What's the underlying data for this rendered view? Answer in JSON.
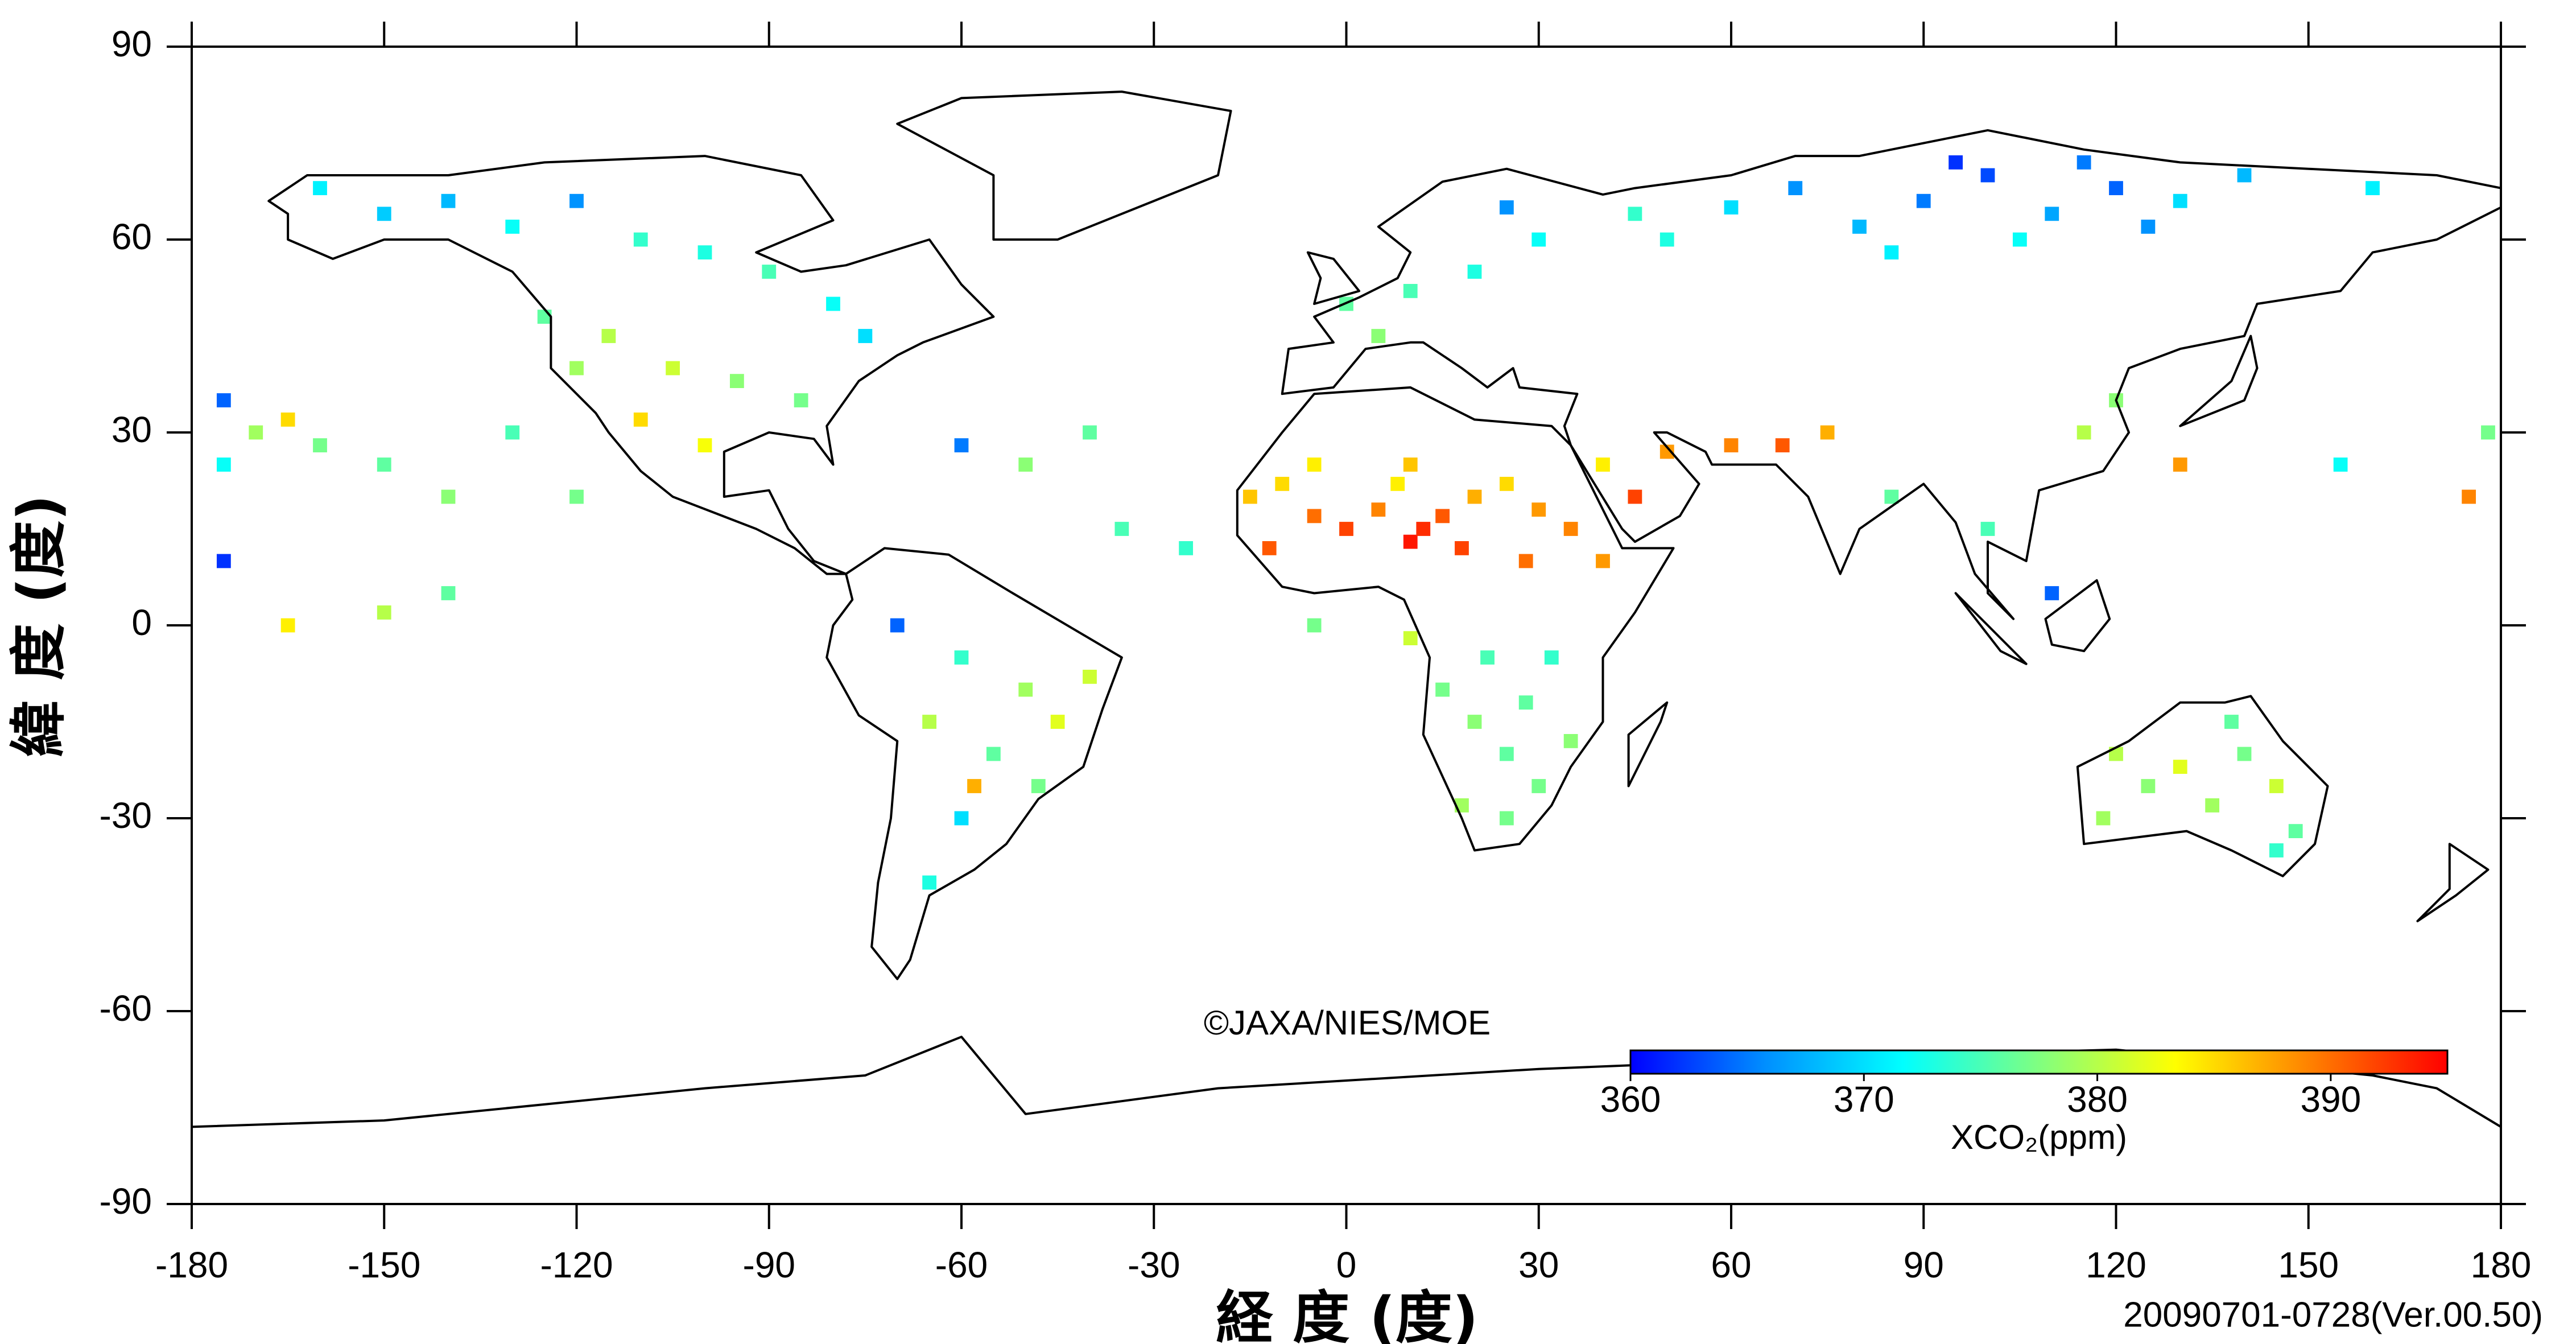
{
  "chart_data": {
    "type": "map",
    "xlabel": "経 度 (度)",
    "ylabel": "緯 度 (度)",
    "xlim": [
      -180,
      180
    ],
    "ylim": [
      -90,
      90
    ],
    "xticks": [
      -180,
      -150,
      -120,
      -90,
      -60,
      -30,
      0,
      30,
      60,
      90,
      120,
      150,
      180
    ],
    "yticks": [
      -90,
      -60,
      -30,
      0,
      30,
      60,
      90
    ],
    "x": [
      -15,
      -10,
      -5,
      0,
      5,
      10,
      12,
      15,
      18,
      20,
      25,
      -5,
      10,
      30,
      35,
      28,
      40,
      45,
      50,
      60,
      68,
      75,
      -12,
      8,
      40,
      15,
      20,
      25,
      30,
      18,
      28,
      35,
      22,
      25,
      32,
      120,
      125,
      130,
      135,
      140,
      145,
      148,
      118,
      138,
      145,
      60,
      70,
      80,
      90,
      100,
      110,
      120,
      130,
      140,
      105,
      85,
      95,
      115,
      125,
      50,
      160,
      45,
      0,
      10,
      20,
      30,
      25,
      5,
      -160,
      -150,
      -140,
      -130,
      -120,
      -110,
      -100,
      -90,
      -80,
      -115,
      -105,
      -95,
      -85,
      -110,
      -100,
      -120,
      -75,
      -125,
      -60,
      -50,
      -45,
      -55,
      -60,
      -65,
      -70,
      -48,
      -40,
      -65,
      -58,
      -175,
      -170,
      -165,
      -160,
      -150,
      -140,
      -130,
      -120,
      -175,
      -165,
      -150,
      -140,
      -175,
      -40,
      -35,
      -50,
      -60,
      -25,
      10,
      -5,
      115,
      120,
      130,
      110,
      100,
      85,
      155,
      175,
      178
    ],
    "y": [
      20,
      22,
      17,
      15,
      18,
      13,
      15,
      17,
      12,
      20,
      22,
      25,
      25,
      18,
      15,
      10,
      25,
      20,
      27,
      28,
      28,
      30,
      12,
      22,
      10,
      -10,
      -15,
      -20,
      -25,
      -28,
      -12,
      -18,
      -5,
      -30,
      -5,
      -20,
      -25,
      -22,
      -28,
      -20,
      -25,
      -32,
      -30,
      -15,
      -35,
      65,
      68,
      62,
      66,
      70,
      64,
      68,
      66,
      70,
      60,
      58,
      72,
      72,
      62,
      60,
      68,
      64,
      50,
      52,
      55,
      60,
      65,
      45,
      68,
      64,
      66,
      62,
      66,
      60,
      58,
      55,
      50,
      45,
      40,
      38,
      35,
      32,
      28,
      40,
      45,
      48,
      -5,
      -10,
      -15,
      -20,
      -30,
      -15,
      0,
      -25,
      -8,
      -40,
      -25,
      35,
      30,
      32,
      28,
      25,
      20,
      30,
      20,
      10,
      0,
      2,
      5,
      25,
      30,
      15,
      25,
      28,
      12,
      -2,
      0,
      30,
      35,
      25,
      5,
      15,
      20,
      25,
      20,
      30
    ],
    "values": [
      386,
      385,
      390,
      392,
      389,
      394,
      393,
      391,
      392,
      387,
      385,
      384,
      386,
      388,
      389,
      390,
      384,
      392,
      388,
      389,
      391,
      387,
      391,
      384,
      388,
      377,
      378,
      376,
      377,
      379,
      376,
      378,
      375,
      377,
      374,
      380,
      378,
      382,
      379,
      377,
      381,
      376,
      379,
      376,
      374,
      370,
      366,
      368,
      365,
      363,
      367,
      364,
      370,
      368,
      372,
      371,
      362,
      365,
      366,
      373,
      371,
      374,
      376,
      375,
      373,
      372,
      366,
      378,
      371,
      369,
      368,
      372,
      366,
      374,
      373,
      375,
      372,
      380,
      381,
      378,
      377,
      385,
      383,
      379,
      370,
      376,
      374,
      379,
      382,
      376,
      370,
      380,
      364,
      377,
      381,
      373,
      387,
      364,
      379,
      385,
      377,
      376,
      378,
      375,
      377,
      362,
      384,
      380,
      376,
      372,
      376,
      375,
      378,
      365,
      374,
      381,
      377,
      380,
      378,
      388,
      364,
      375,
      376,
      372,
      389,
      377
    ],
    "colorbar": {
      "label": "XCO₂(ppm)",
      "lim": [
        360,
        395
      ],
      "ticks": [
        360,
        370,
        380,
        390
      ],
      "colormap": [
        "#0000ff",
        "#0090ff",
        "#00ffff",
        "#80ff80",
        "#ffff00",
        "#ff8000",
        "#ff0000"
      ]
    },
    "annotations": [
      "©JAXA/NIES/MOE",
      "20090701-0728(Ver.00.50)"
    ]
  }
}
